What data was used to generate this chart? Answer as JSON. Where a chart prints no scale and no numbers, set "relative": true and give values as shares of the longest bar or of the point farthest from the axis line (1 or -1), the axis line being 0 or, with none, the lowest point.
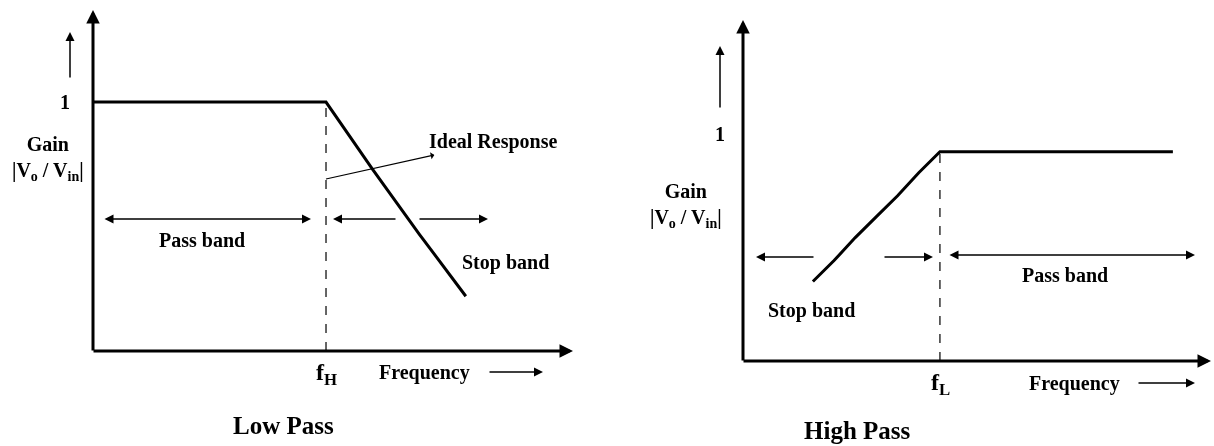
{
  "chart_data": [
    {
      "type": "line",
      "title": "Low Pass",
      "xlabel": "Frequency",
      "ylabel": "Gain\n|V$_{o}$ / V$_{in}$|",
      "relative": true,
      "categories": [
        null,
        null,
        null,
        null,
        null,
        null,
        null,
        null,
        null
      ],
      "series": [
        {
          "color": "#000000",
          "values": [
            1,
            1,
            1,
            1,
            1,
            1,
            0.73,
            0.47,
            0.22
          ]
        }
      ],
      "annotations": [
        "1",
        "Ideal Response",
        "Pass band",
        "Stop band",
        "f$_{H}$"
      ]
    },
    {
      "type": "line",
      "title": "High Pass",
      "xlabel": "Frequency",
      "ylabel": "Gain\n|V$_{o}$ / V$_{in}$|",
      "relative": true,
      "categories": [
        null,
        null,
        null,
        null,
        null,
        null,
        null,
        null,
        null,
        null,
        null,
        null,
        null,
        null,
        null,
        null,
        null,
        null,
        null,
        null,
        null
      ],
      "series": [
        {
          "color": "#000000",
          "values": [
            null,
            null,
            null,
            0.38,
            0.48,
            0.59,
            0.69,
            0.79,
            0.9,
            1,
            1,
            1,
            1,
            1,
            1,
            1,
            1,
            1,
            1,
            1,
            1
          ]
        }
      ],
      "annotations": [
        "1",
        "Stop band",
        "Pass band",
        "f$_{L}$"
      ]
    }
  ]
}
